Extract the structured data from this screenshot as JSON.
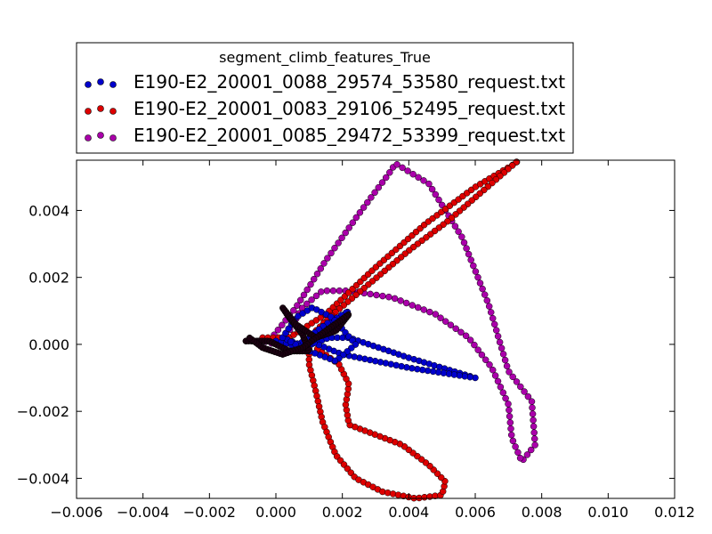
{
  "chart_data": {
    "type": "scatter",
    "title": "",
    "xlabel": "",
    "ylabel": "",
    "xlim": [
      -0.006,
      0.012
    ],
    "ylim": [
      -0.0046,
      0.0055
    ],
    "x_ticks": [
      -0.006,
      -0.004,
      -0.002,
      0.0,
      0.002,
      0.004,
      0.006,
      0.008,
      0.01,
      0.012
    ],
    "y_ticks": [
      -0.004,
      -0.002,
      0.0,
      0.002,
      0.004
    ],
    "x_tick_labels": [
      "−0.006",
      "−0.004",
      "−0.002",
      "0.000",
      "0.002",
      "0.004",
      "0.006",
      "0.008",
      "0.010",
      "0.012"
    ],
    "y_tick_labels": [
      "−0.004",
      "−0.002",
      "0.000",
      "0.002",
      "0.004"
    ],
    "grid": false,
    "legend": {
      "title": "segment_climb_features_True",
      "placement": "above-plot-left"
    },
    "series": [
      {
        "name": "E190-E2_20001_0088_29574_53580_request.txt",
        "color": "#0000cc",
        "path": [
          [
            0.0,
            0.0001
          ],
          [
            0.0008,
            -0.0001
          ],
          [
            0.0016,
            0.0002
          ],
          [
            0.0022,
            0.0002
          ],
          [
            0.004,
            -0.0004
          ],
          [
            0.006,
            -0.001
          ],
          [
            0.004,
            -0.0007
          ],
          [
            0.002,
            -0.0003
          ],
          [
            0.001,
            0.0001
          ],
          [
            0.0015,
            0.0005
          ],
          [
            0.0022,
            0.001
          ],
          [
            0.0015,
            0.0006
          ],
          [
            0.0007,
            0.0
          ],
          [
            0.0002,
            0.0002
          ],
          [
            0.0006,
            0.0008
          ],
          [
            0.0011,
            0.0011
          ],
          [
            0.0017,
            0.0008
          ],
          [
            0.0024,
            0.0
          ],
          [
            0.0018,
            -0.0005
          ],
          [
            0.001,
            -0.0002
          ],
          [
            0.0004,
            0.0001
          ]
        ]
      },
      {
        "name": "E190-E2_20001_0083_29106_52495_request.txt",
        "color": "#dd0000",
        "path": [
          [
            -0.0004,
            0.0002
          ],
          [
            0.0004,
            0.0002
          ],
          [
            0.0015,
            0.0009
          ],
          [
            0.003,
            0.0023
          ],
          [
            0.0045,
            0.0036
          ],
          [
            0.006,
            0.0047
          ],
          [
            0.0072,
            0.0054
          ],
          [
            0.0073,
            0.0055
          ],
          [
            0.0066,
            0.0049
          ],
          [
            0.0052,
            0.0037
          ],
          [
            0.004,
            0.0028
          ],
          [
            0.0028,
            0.0018
          ],
          [
            0.0016,
            0.0008
          ],
          [
            0.001,
            0.0002
          ],
          [
            0.001,
            -0.0006
          ],
          [
            0.0012,
            -0.0014
          ],
          [
            0.0014,
            -0.0023
          ],
          [
            0.0018,
            -0.0033
          ],
          [
            0.0024,
            -0.004
          ],
          [
            0.0032,
            -0.0044
          ],
          [
            0.0042,
            -0.0046
          ],
          [
            0.005,
            -0.0045
          ],
          [
            0.0051,
            -0.0041
          ],
          [
            0.0046,
            -0.0036
          ],
          [
            0.0038,
            -0.003
          ],
          [
            0.003,
            -0.0027
          ],
          [
            0.0022,
            -0.0024
          ],
          [
            0.0021,
            -0.0018
          ],
          [
            0.0022,
            -0.0012
          ],
          [
            0.0019,
            -0.0006
          ],
          [
            0.0012,
            -0.0001
          ]
        ]
      },
      {
        "name": "E190-E2_20001_0085_29472_53399_request.txt",
        "color": "#aa00aa",
        "path": [
          [
            -0.0009,
            0.0001
          ],
          [
            -0.0002,
            0.0001
          ],
          [
            0.0006,
            0.0011
          ],
          [
            0.0015,
            0.0025
          ],
          [
            0.0025,
            0.0039
          ],
          [
            0.0034,
            0.0051
          ],
          [
            0.0036,
            0.0054
          ],
          [
            0.0046,
            0.0048
          ],
          [
            0.0056,
            0.0032
          ],
          [
            0.0064,
            0.0012
          ],
          [
            0.007,
            -0.0008
          ],
          [
            0.0077,
            -0.0017
          ],
          [
            0.0078,
            -0.003
          ],
          [
            0.0074,
            -0.0035
          ],
          [
            0.0071,
            -0.0028
          ],
          [
            0.007,
            -0.0018
          ],
          [
            0.0065,
            -0.0007
          ],
          [
            0.0058,
            0.0002
          ],
          [
            0.0048,
            0.0009
          ],
          [
            0.0035,
            0.0014
          ],
          [
            0.0022,
            0.0016
          ],
          [
            0.0014,
            0.0016
          ],
          [
            0.0008,
            0.0011
          ],
          [
            0.0004,
            0.0004
          ],
          [
            0.0,
            0.0
          ],
          [
            -0.0004,
            0.0001
          ]
        ]
      }
    ],
    "overlap_cluster": {
      "color": "#1a0010",
      "path": [
        [
          -0.0009,
          0.0001
        ],
        [
          -0.0002,
          0.0001
        ],
        [
          0.0004,
          -0.0002
        ],
        [
          0.001,
          -0.0002
        ],
        [
          0.0008,
          0.0003
        ],
        [
          0.0004,
          0.0008
        ],
        [
          0.0002,
          0.0011
        ],
        [
          0.0006,
          0.0006
        ],
        [
          0.0012,
          0.0002
        ],
        [
          0.0018,
          0.0004
        ],
        [
          0.0022,
          0.0009
        ],
        [
          0.0015,
          0.0004
        ],
        [
          0.0008,
          -0.0001
        ],
        [
          0.0002,
          -0.0003
        ],
        [
          -0.0004,
          -0.0001
        ],
        [
          -0.0008,
          0.0002
        ]
      ]
    }
  }
}
